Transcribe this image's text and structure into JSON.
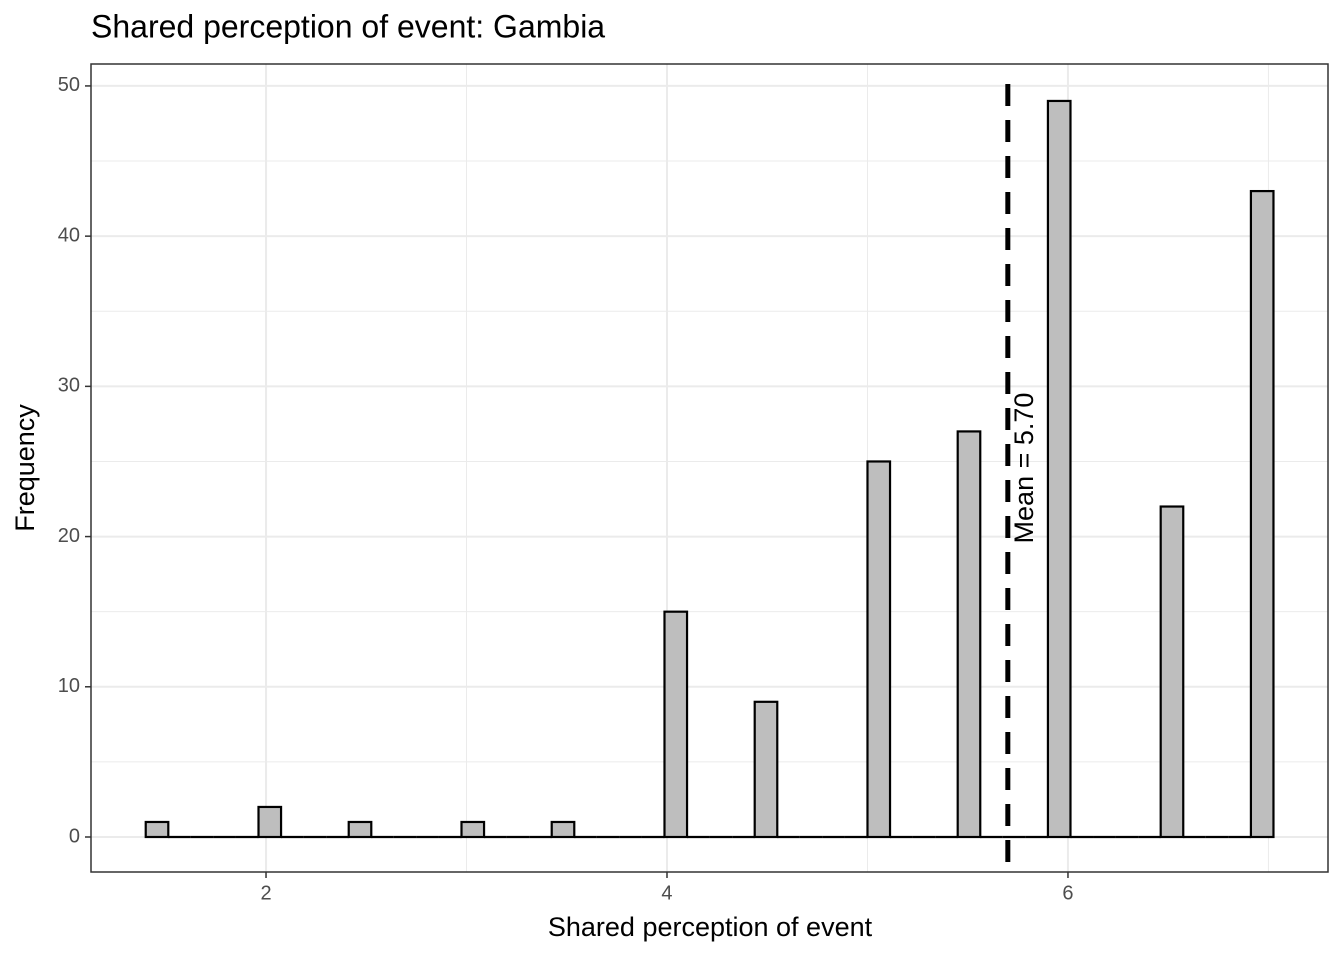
{
  "chart_data": {
    "type": "histogram",
    "title": "Shared perception of event: Gambia",
    "x_label": "Shared perception of event",
    "y_label": "Frequency",
    "bins": [
      1.4,
      1.5125,
      1.625,
      1.7375,
      1.85,
      1.9625,
      2.075,
      2.1875,
      2.3,
      2.4125,
      2.525,
      2.6375,
      2.75,
      2.8625,
      2.975,
      3.0875,
      3.2,
      3.3125,
      3.425,
      3.5375,
      3.65,
      3.7625,
      3.875,
      3.9875,
      4.1,
      4.2125,
      4.325,
      4.4375,
      4.55,
      4.6625,
      4.775,
      4.8875,
      5.0,
      5.1125,
      5.225,
      5.3375,
      5.45,
      5.5625,
      5.675,
      5.7875,
      5.9,
      6.0125,
      6.125,
      6.2375,
      6.35,
      6.4625,
      6.575,
      6.6875,
      6.8,
      6.9125,
      7.025
    ],
    "values": [
      1,
      0,
      0,
      0,
      0,
      2,
      0,
      0,
      0,
      1,
      0,
      0,
      0,
      0,
      1,
      0,
      0,
      0,
      1,
      0,
      0,
      0,
      0,
      15,
      0,
      0,
      0,
      9,
      0,
      0,
      0,
      0,
      25,
      0,
      0,
      0,
      27,
      0,
      0,
      0,
      49,
      0,
      0,
      0,
      0,
      22,
      0,
      0,
      0,
      43
    ],
    "color": "#bebebe",
    "edge_color": "#000000",
    "xlim": [
      1.127,
      7.297
    ],
    "ylim": [
      -2.33,
      51.46
    ],
    "xticks": [
      2,
      4,
      6
    ],
    "yticks": [
      0,
      10,
      20,
      30,
      40,
      50
    ],
    "xminor": [
      3,
      5,
      7
    ],
    "yminor": [
      5,
      15,
      25,
      35,
      45
    ],
    "grid": true,
    "mean_line": {
      "value": 5.7,
      "label": "Mean = 5.70"
    }
  }
}
